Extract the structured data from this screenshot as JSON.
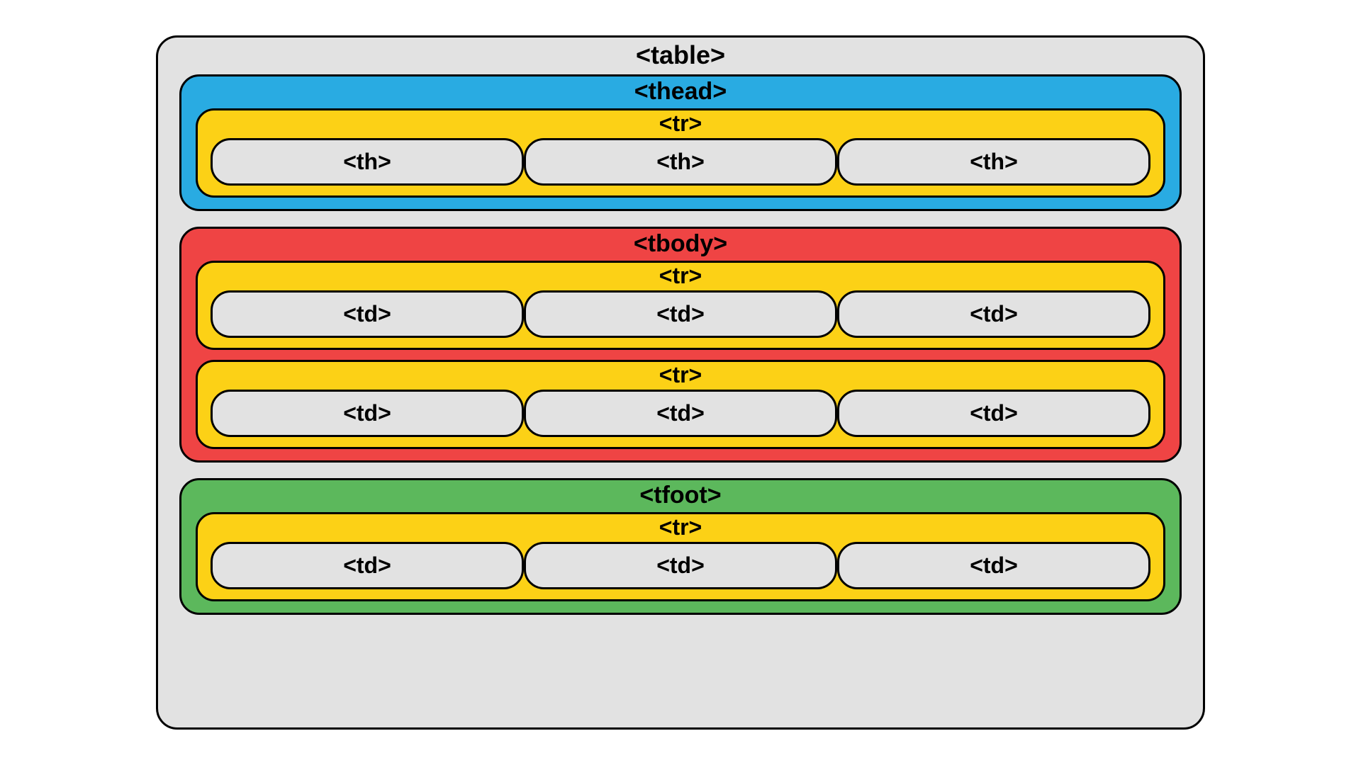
{
  "diagram": {
    "type": "infographic",
    "description": "HTML table element structure diagram",
    "background_color": "#ffffff",
    "border_color": "#000000",
    "border_width": 3,
    "border_radius": 28,
    "font_family": "system-ui",
    "label_fontsize": 34,
    "label_fontweight": 700,
    "table": {
      "label": "<table>",
      "bg_color": "#e2e2e2"
    },
    "sections": {
      "thead": {
        "label": "<thead>",
        "bg_color": "#29abe2",
        "rows": [
          {
            "label": "<tr>",
            "bg_color": "#fcd116",
            "cells": [
              {
                "label": "<th>",
                "bg_color": "#e2e2e2"
              },
              {
                "label": "<th>",
                "bg_color": "#e2e2e2"
              },
              {
                "label": "<th>",
                "bg_color": "#e2e2e2"
              }
            ]
          }
        ]
      },
      "tbody": {
        "label": "<tbody>",
        "bg_color": "#ef4444",
        "rows": [
          {
            "label": "<tr>",
            "bg_color": "#fcd116",
            "cells": [
              {
                "label": "<td>",
                "bg_color": "#e2e2e2"
              },
              {
                "label": "<td>",
                "bg_color": "#e2e2e2"
              },
              {
                "label": "<td>",
                "bg_color": "#e2e2e2"
              }
            ]
          },
          {
            "label": "<tr>",
            "bg_color": "#fcd116",
            "cells": [
              {
                "label": "<td>",
                "bg_color": "#e2e2e2"
              },
              {
                "label": "<td>",
                "bg_color": "#e2e2e2"
              },
              {
                "label": "<td>",
                "bg_color": "#e2e2e2"
              }
            ]
          }
        ]
      },
      "tfoot": {
        "label": "<tfoot>",
        "bg_color": "#5cb85c",
        "rows": [
          {
            "label": "<tr>",
            "bg_color": "#fcd116",
            "cells": [
              {
                "label": "<td>",
                "bg_color": "#e2e2e2"
              },
              {
                "label": "<td>",
                "bg_color": "#e2e2e2"
              },
              {
                "label": "<td>",
                "bg_color": "#e2e2e2"
              }
            ]
          }
        ]
      }
    }
  }
}
